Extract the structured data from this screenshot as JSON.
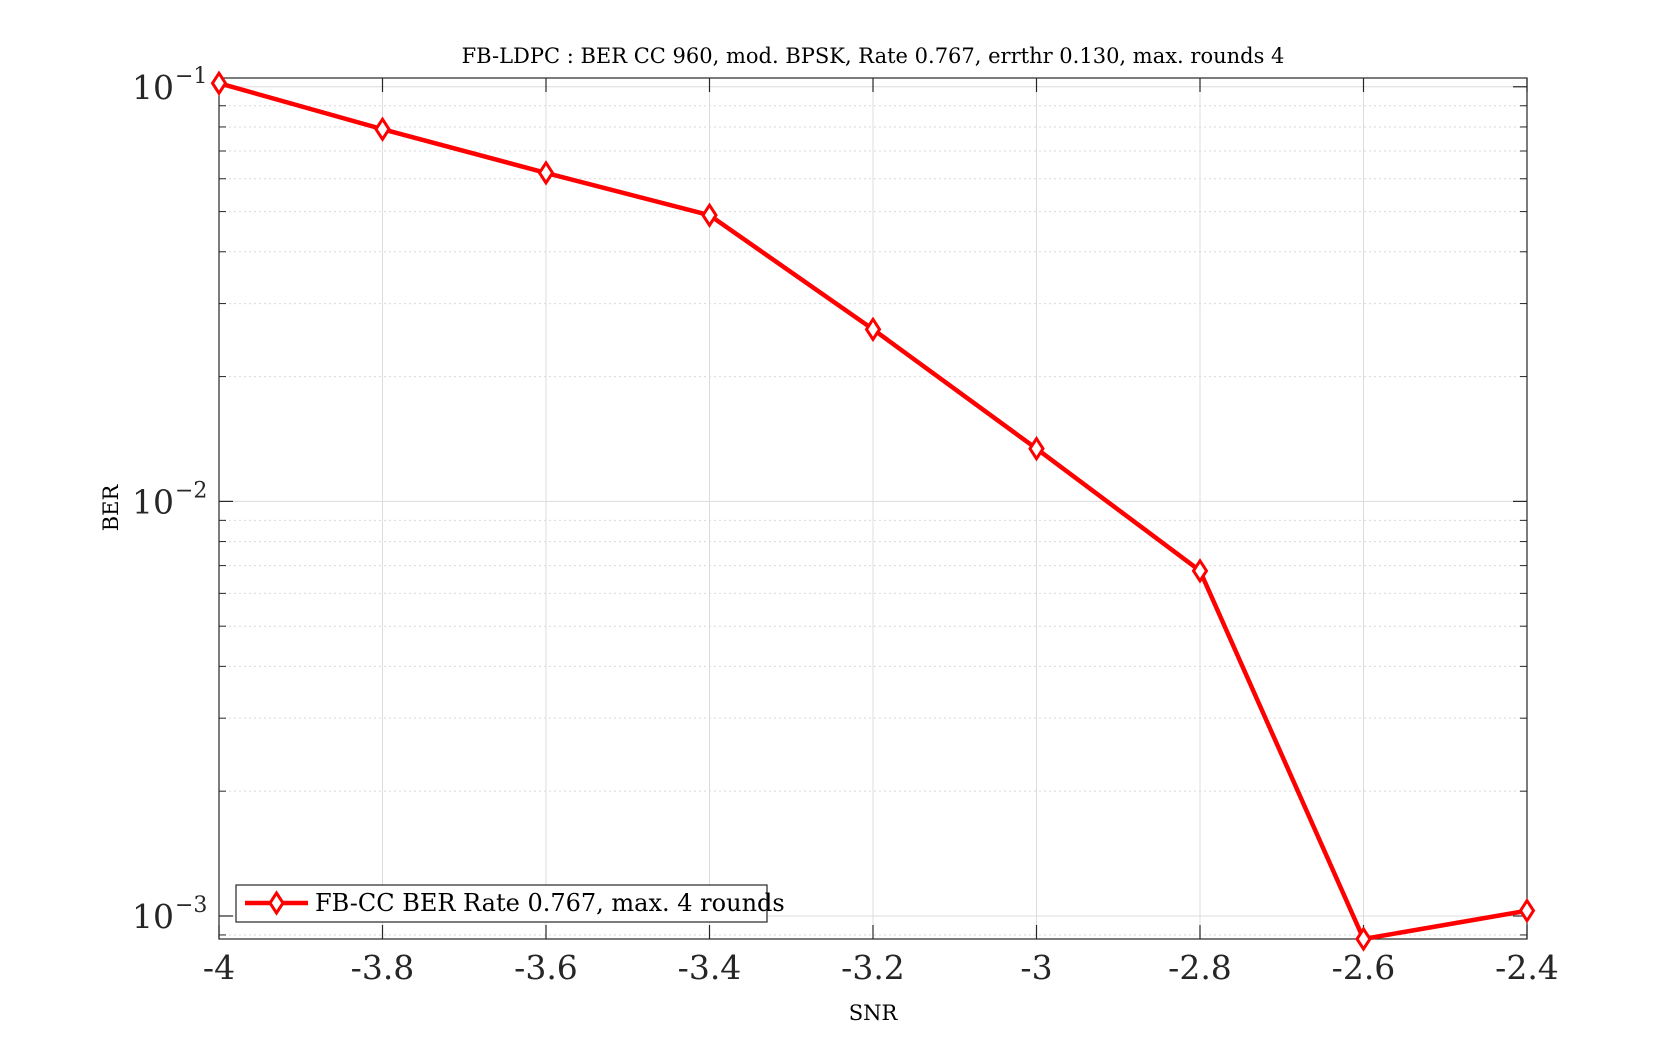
{
  "chart_data": {
    "type": "line",
    "title": "FB-LDPC : BER CC 960, mod. BPSK, Rate 0.767, errthr 0.130, max. rounds 4",
    "xlabel": "SNR",
    "ylabel": "BER",
    "xlim": [
      -4,
      -2.4
    ],
    "ylim": [
      0.00088,
      0.105
    ],
    "yscale": "log",
    "grid": true,
    "legend_position": "bottom-left",
    "x_ticks": [
      "-4",
      "-3.8",
      "-3.6",
      "-3.4",
      "-3.2",
      "-3",
      "-2.8",
      "-2.6",
      "-2.4"
    ],
    "y_ticks": [
      {
        "base": "10",
        "exp": "−1"
      },
      {
        "base": "10",
        "exp": "−2"
      },
      {
        "base": "10",
        "exp": "−3"
      }
    ],
    "series": [
      {
        "name": "FB-CC BER Rate 0.767, max. 4 rounds",
        "color": "#ff0000",
        "marker": "diamond",
        "x": [
          -4,
          -3.8,
          -3.6,
          -3.4,
          -3.2,
          -3.0,
          -2.8,
          -2.6,
          -2.4
        ],
        "y": [
          0.102,
          0.079,
          0.062,
          0.049,
          0.026,
          0.0134,
          0.0068,
          0.00088,
          0.00103
        ]
      }
    ]
  }
}
